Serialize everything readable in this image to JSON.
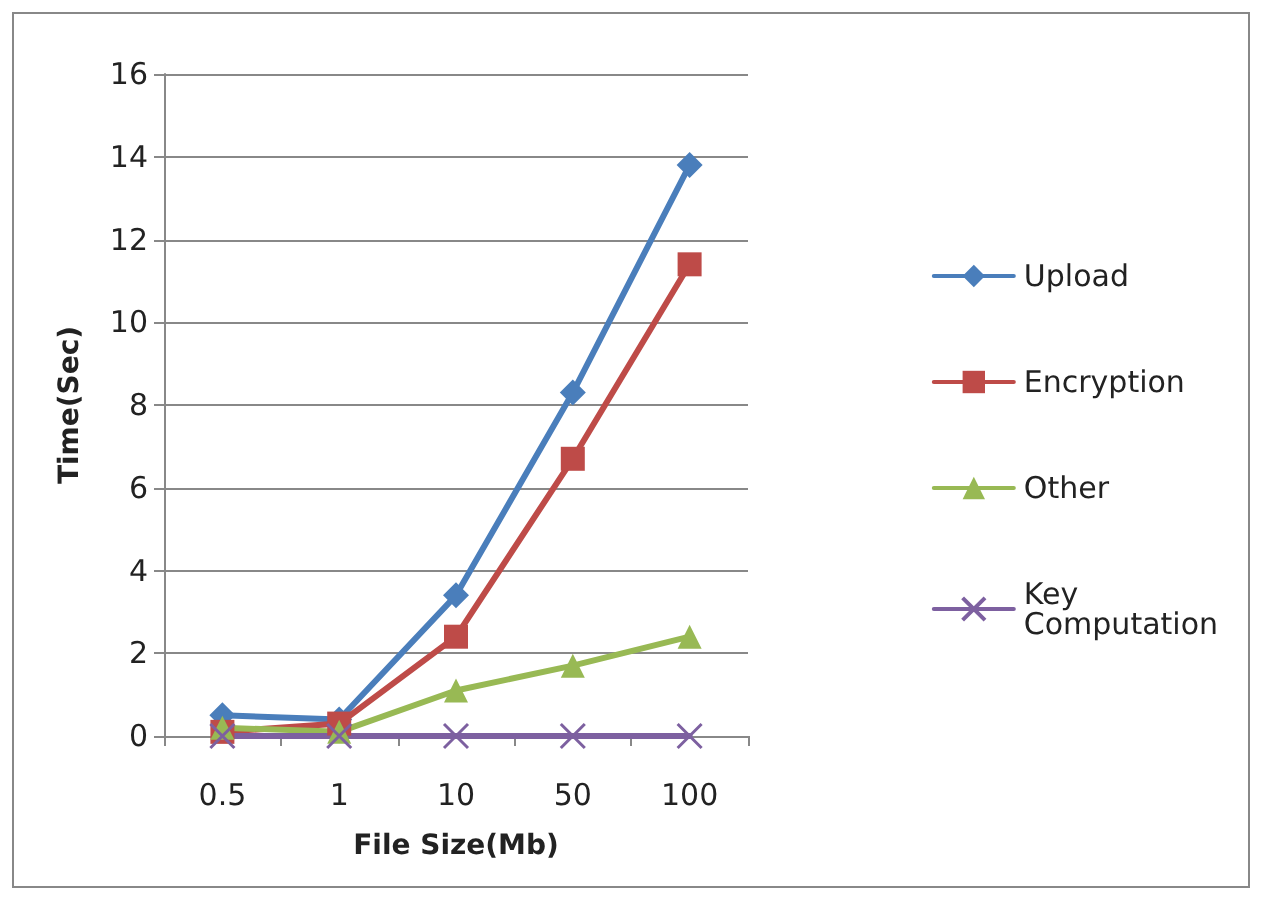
{
  "chart_data": {
    "type": "line",
    "xlabel": "File Size(Mb)",
    "ylabel": "Time(Sec)",
    "categories": [
      "0.5",
      "1",
      "10",
      "50",
      "100"
    ],
    "series": [
      {
        "name": "Upload",
        "color": "#4a7ebb",
        "marker": "diamond",
        "values": [
          0.5,
          0.4,
          3.4,
          8.3,
          13.8
        ]
      },
      {
        "name": "Encryption",
        "color": "#be4b48",
        "marker": "square",
        "values": [
          0.1,
          0.3,
          2.4,
          6.7,
          11.4
        ]
      },
      {
        "name": "Other",
        "color": "#98b954",
        "marker": "triangle",
        "values": [
          0.2,
          0.1,
          1.1,
          1.7,
          2.4
        ]
      },
      {
        "name": "Key Computation",
        "color": "#7d60a0",
        "marker": "cross",
        "values": [
          0,
          0,
          0,
          0,
          0
        ]
      }
    ],
    "ylim": [
      0,
      16
    ],
    "yticks": [
      0,
      2,
      4,
      6,
      8,
      10,
      12,
      14,
      16
    ],
    "grid": "y",
    "legend": "right"
  }
}
